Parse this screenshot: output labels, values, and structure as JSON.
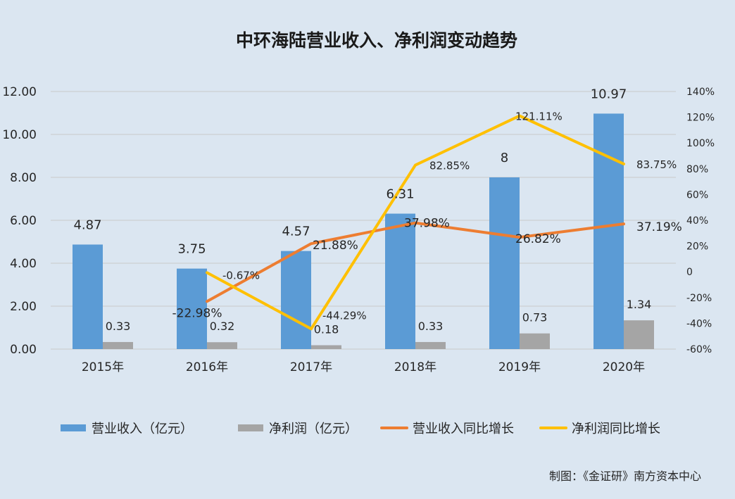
{
  "chart_data": {
    "type": "bar",
    "title": "中环海陆营业收入、净利润变动趋势",
    "categories": [
      "2015年",
      "2016年",
      "2017年",
      "2018年",
      "2019年",
      "2020年"
    ],
    "y_left": {
      "min": 0,
      "max": 12,
      "step": 2,
      "tick_labels": [
        "0.00",
        "2.00",
        "4.00",
        "6.00",
        "8.00",
        "10.00",
        "12.00"
      ]
    },
    "y_right": {
      "min": -60,
      "max": 140,
      "step": 20,
      "tick_labels": [
        "-60%",
        "-40%",
        "-20%",
        "0",
        "20%",
        "40%",
        "60%",
        "80%",
        "100%",
        "120%",
        "140%"
      ]
    },
    "grid": true,
    "legend_position": "bottom",
    "series": [
      {
        "name": "营业收入（亿元）",
        "type": "bar",
        "axis": "left",
        "color": "#5b9bd5",
        "values": [
          4.87,
          3.75,
          4.57,
          6.31,
          8,
          10.97
        ],
        "labels": [
          "4.87",
          "3.75",
          "4.57",
          "6.31",
          "8",
          "10.97"
        ]
      },
      {
        "name": "净利润（亿元）",
        "type": "bar",
        "axis": "left",
        "color": "#a5a5a5",
        "values": [
          0.33,
          0.32,
          0.18,
          0.33,
          0.73,
          1.34
        ],
        "labels": [
          "0.33",
          "0.32",
          "0.18",
          "0.33",
          "0.73",
          "1.34"
        ]
      },
      {
        "name": "营业收入同比增长",
        "type": "line",
        "axis": "right",
        "color": "#ed7d31",
        "values": [
          null,
          -22.98,
          21.88,
          37.98,
          26.82,
          37.19
        ],
        "labels": [
          "",
          "-22.98%",
          "21.88%",
          "37.98%",
          "26.82%",
          "37.19%"
        ]
      },
      {
        "name": "净利润同比增长",
        "type": "line",
        "axis": "right",
        "color": "#ffc000",
        "values": [
          null,
          -0.67,
          -44.29,
          82.85,
          121.11,
          83.75
        ],
        "labels": [
          "",
          "-0.67%",
          "-44.29%",
          "82.85%",
          "121.11%",
          "83.75%"
        ]
      }
    ]
  },
  "source_note": "制图：《金证研》南方资本中心"
}
